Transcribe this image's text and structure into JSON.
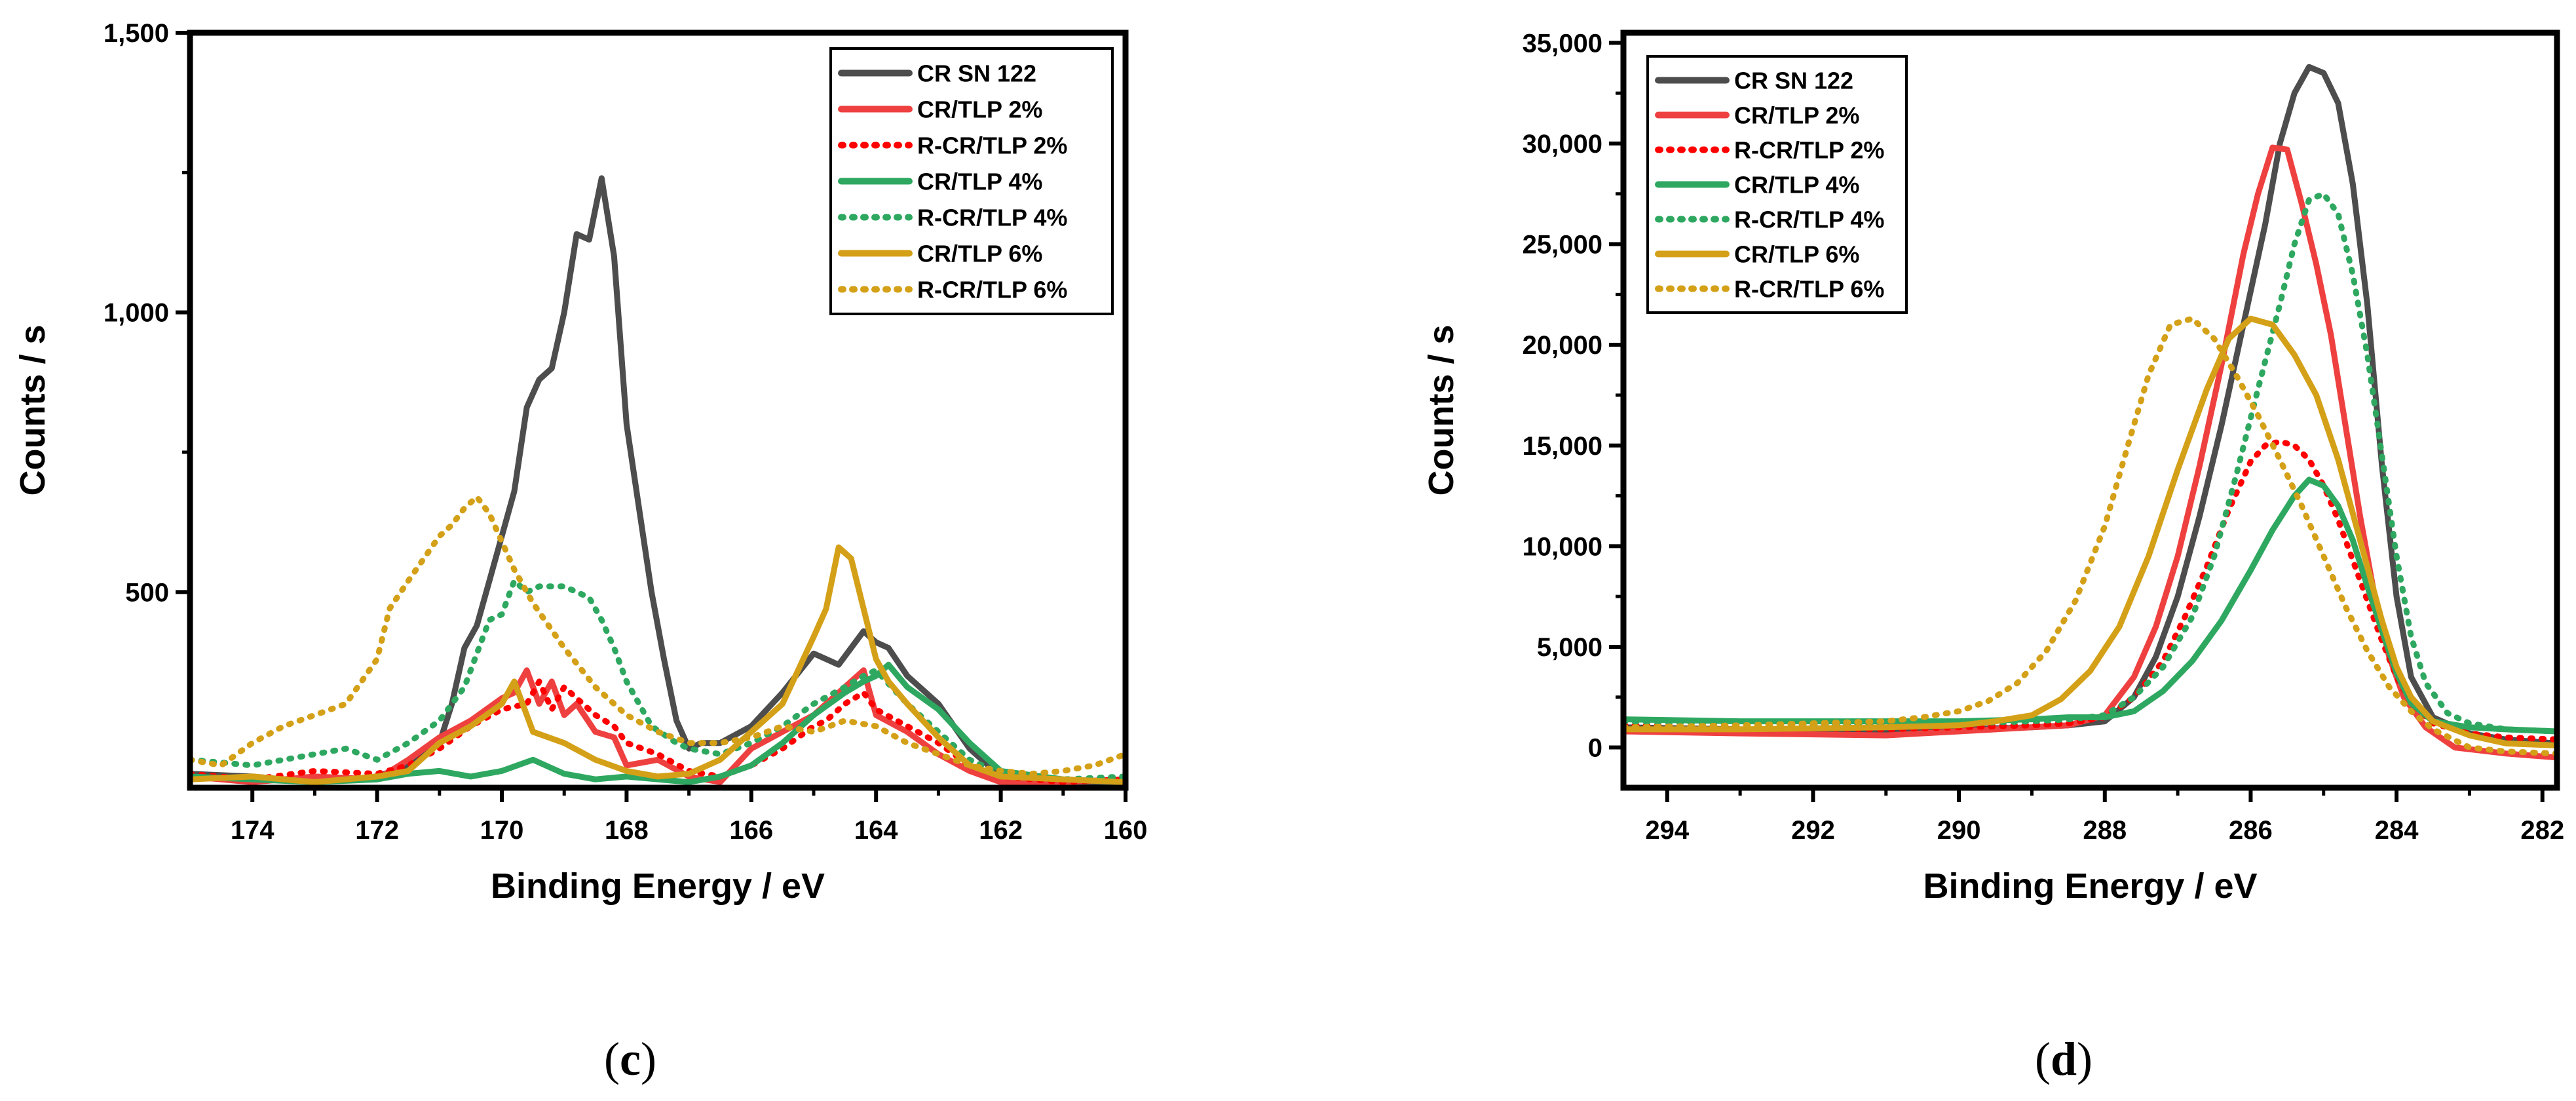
{
  "chart_data": [
    {
      "type": "line",
      "panel_label": "c",
      "xlabel": "Binding Energy / eV",
      "ylabel": "Counts / s",
      "xlim": [
        175,
        160
      ],
      "ylim": [
        150,
        1500
      ],
      "xticks": [
        174,
        172,
        170,
        168,
        166,
        164,
        162,
        160
      ],
      "xtick_labels": [
        "174",
        "172",
        "170",
        "168",
        "166",
        "164",
        "162",
        "160"
      ],
      "yticks": [
        500,
        1000,
        1500
      ],
      "ytick_labels": [
        "500",
        "1,000",
        "1,500"
      ],
      "legend_position": "top-right",
      "series": [
        {
          "name": "CR SN 122",
          "color": "#4d4d4d",
          "dash": "solid",
          "x": [
            175,
            174,
            173,
            172,
            171.5,
            171,
            170.8,
            170.6,
            170.4,
            170.2,
            170,
            169.8,
            169.6,
            169.4,
            169.2,
            169,
            168.8,
            168.6,
            168.4,
            168.2,
            168,
            167.8,
            167.6,
            167.4,
            167.2,
            167,
            166.8,
            166.5,
            166,
            165.5,
            165,
            164.6,
            164.2,
            164,
            163.8,
            163.5,
            163,
            162.5,
            162,
            161.5,
            161,
            160
          ],
          "y": [
            175,
            170,
            160,
            170,
            190,
            230,
            300,
            400,
            440,
            520,
            600,
            680,
            830,
            880,
            900,
            1000,
            1140,
            1130,
            1240,
            1100,
            800,
            650,
            500,
            380,
            270,
            220,
            230,
            230,
            260,
            320,
            390,
            370,
            430,
            410,
            400,
            350,
            300,
            220,
            170,
            165,
            160,
            160
          ]
        },
        {
          "name": "CR/TLP 2%",
          "color": "#ef4040",
          "dash": "solid",
          "x": [
            175,
            174,
            173,
            172,
            171.5,
            171,
            170.5,
            170,
            169.8,
            169.6,
            169.4,
            169.2,
            169,
            168.8,
            168.5,
            168.2,
            168,
            167.5,
            167,
            166.5,
            166,
            165.5,
            165,
            164.8,
            164.5,
            164.2,
            164,
            163.5,
            163,
            162.5,
            162,
            161,
            160
          ],
          "y": [
            170,
            160,
            170,
            165,
            200,
            240,
            270,
            310,
            320,
            360,
            300,
            340,
            280,
            300,
            250,
            240,
            190,
            200,
            170,
            160,
            220,
            250,
            280,
            300,
            330,
            360,
            280,
            250,
            210,
            180,
            160,
            160,
            165
          ]
        },
        {
          "name": "R-CR/TLP 2%",
          "color": "#ff0000",
          "dash": "dot",
          "x": [
            175,
            174,
            173,
            172,
            171.5,
            171,
            170.5,
            170,
            169.6,
            169.4,
            169.2,
            169,
            168.8,
            168.5,
            168.2,
            168,
            167.5,
            167,
            166.5,
            166,
            165.5,
            165,
            164.8,
            164.5,
            164.2,
            164,
            163.5,
            163,
            162.5,
            162,
            161,
            160
          ],
          "y": [
            175,
            165,
            180,
            175,
            190,
            220,
            260,
            290,
            300,
            340,
            290,
            330,
            310,
            280,
            260,
            230,
            210,
            180,
            170,
            190,
            220,
            260,
            270,
            300,
            320,
            290,
            260,
            230,
            190,
            170,
            160,
            165
          ]
        },
        {
          "name": "CR/TLP 4%",
          "color": "#2ea860",
          "dash": "solid",
          "x": [
            175,
            174,
            173,
            172,
            171.5,
            171,
            170.5,
            170,
            169.5,
            169,
            168.5,
            168,
            167.5,
            167,
            166.5,
            166,
            165.5,
            165,
            164.5,
            164.2,
            164,
            163.8,
            163.5,
            163,
            162.5,
            162,
            161,
            160
          ],
          "y": [
            170,
            165,
            160,
            165,
            175,
            180,
            170,
            180,
            200,
            175,
            165,
            170,
            165,
            160,
            170,
            190,
            230,
            280,
            320,
            340,
            350,
            370,
            330,
            290,
            230,
            180,
            165,
            160
          ]
        },
        {
          "name": "R-CR/TLP 4%",
          "color": "#2ea860",
          "dash": "dot",
          "x": [
            175,
            174,
            173,
            172.5,
            172,
            171.5,
            171,
            170.6,
            170.4,
            170.2,
            170,
            169.8,
            169.6,
            169.4,
            169,
            168.6,
            168.4,
            168.2,
            168,
            167.6,
            167.2,
            167,
            166.5,
            166,
            165.5,
            165,
            164.5,
            164.2,
            164,
            163.5,
            163,
            162.5,
            162,
            161,
            160
          ],
          "y": [
            200,
            190,
            210,
            220,
            200,
            230,
            270,
            330,
            390,
            450,
            460,
            520,
            500,
            510,
            510,
            490,
            450,
            400,
            340,
            260,
            230,
            220,
            210,
            230,
            260,
            300,
            330,
            350,
            360,
            300,
            250,
            200,
            175,
            165,
            170
          ]
        },
        {
          "name": "CR/TLP 6%",
          "color": "#d4a017",
          "dash": "solid",
          "x": [
            175,
            174,
            173,
            172,
            171.5,
            171,
            170.5,
            170,
            169.8,
            169.5,
            169,
            168.5,
            168,
            167.5,
            167,
            166.5,
            166,
            165.5,
            165,
            164.8,
            164.6,
            164.4,
            164.2,
            164,
            163.8,
            163.5,
            163,
            162.5,
            162,
            161,
            160
          ],
          "y": [
            165,
            170,
            160,
            170,
            180,
            230,
            260,
            300,
            340,
            250,
            230,
            200,
            180,
            170,
            175,
            200,
            250,
            300,
            420,
            470,
            580,
            560,
            470,
            380,
            340,
            300,
            240,
            190,
            170,
            165,
            160
          ]
        },
        {
          "name": "R-CR/TLP 6%",
          "color": "#d4a017",
          "dash": "dot",
          "x": [
            175,
            174.5,
            174,
            173.5,
            173,
            172.5,
            172,
            171.8,
            171.5,
            171,
            170.8,
            170.6,
            170.4,
            170.2,
            170,
            169.8,
            169.5,
            169,
            168.5,
            168,
            167.5,
            167,
            166.5,
            166,
            165.5,
            165,
            164.5,
            164,
            163.5,
            163,
            162.5,
            162,
            161.5,
            161,
            160.5,
            160
          ],
          "y": [
            200,
            190,
            230,
            260,
            280,
            300,
            380,
            470,
            520,
            600,
            620,
            650,
            670,
            640,
            590,
            540,
            480,
            400,
            330,
            280,
            250,
            230,
            230,
            240,
            260,
            250,
            270,
            260,
            230,
            210,
            190,
            180,
            175,
            180,
            190,
            210
          ]
        }
      ]
    },
    {
      "type": "line",
      "panel_label": "d",
      "xlabel": "Binding Energy / eV",
      "ylabel": "Counts / s",
      "xlim": [
        294.6,
        281.8
      ],
      "ylim": [
        -2000,
        35500
      ],
      "xticks": [
        294,
        292,
        290,
        288,
        286,
        284,
        282
      ],
      "xtick_labels": [
        "294",
        "292",
        "290",
        "288",
        "286",
        "284",
        "282"
      ],
      "yticks": [
        0,
        5000,
        10000,
        15000,
        20000,
        25000,
        30000,
        35000
      ],
      "ytick_labels": [
        "0",
        "5,000",
        "10,000",
        "15,000",
        "20,000",
        "25,000",
        "30,000",
        "35,000"
      ],
      "legend_position": "top-left",
      "series": [
        {
          "name": "CR SN 122",
          "color": "#4d4d4d",
          "dash": "solid",
          "x": [
            294.6,
            293,
            291,
            290,
            289,
            288.5,
            288,
            287.6,
            287.3,
            287,
            286.7,
            286.4,
            286.1,
            285.8,
            285.6,
            285.4,
            285.2,
            285,
            284.8,
            284.6,
            284.4,
            284.2,
            284,
            283.8,
            283.5,
            283,
            282.5,
            281.8
          ],
          "y": [
            1000,
            900,
            800,
            900,
            1000,
            1100,
            1300,
            2500,
            4500,
            7500,
            11500,
            16000,
            21000,
            26000,
            30000,
            32500,
            33800,
            33500,
            32000,
            28000,
            22000,
            14000,
            7500,
            3500,
            1500,
            700,
            400,
            200
          ]
        },
        {
          "name": "CR/TLP 2%",
          "color": "#ef4040",
          "dash": "solid",
          "x": [
            294.6,
            293,
            291,
            290,
            289,
            288.5,
            288,
            287.6,
            287.3,
            287,
            286.7,
            286.4,
            286.1,
            285.9,
            285.7,
            285.5,
            285.3,
            285.1,
            284.9,
            284.7,
            284.5,
            284.3,
            284.1,
            283.9,
            283.6,
            283.2,
            282.5,
            281.8
          ],
          "y": [
            800,
            700,
            600,
            800,
            1000,
            1100,
            1600,
            3500,
            6000,
            9500,
            14000,
            19000,
            24500,
            27500,
            29800,
            29700,
            27000,
            24000,
            20500,
            16000,
            11500,
            7500,
            4500,
            2500,
            1000,
            0,
            -300,
            -500
          ]
        },
        {
          "name": "R-CR/TLP 2%",
          "color": "#ff0000",
          "dash": "dot",
          "x": [
            294.6,
            293,
            291,
            290,
            289,
            288.5,
            288,
            287.6,
            287.2,
            286.9,
            286.6,
            286.3,
            286,
            285.8,
            285.6,
            285.4,
            285.2,
            285,
            284.8,
            284.6,
            284.4,
            284.2,
            284,
            283.8,
            283.5,
            283,
            282.5,
            281.8
          ],
          "y": [
            1100,
            1000,
            900,
            1000,
            1100,
            1200,
            1500,
            2500,
            4300,
            6500,
            9000,
            11800,
            14200,
            15000,
            15200,
            15000,
            14300,
            13000,
            11300,
            9300,
            7300,
            5300,
            3500,
            2200,
            1200,
            700,
            500,
            400
          ]
        },
        {
          "name": "CR/TLP 4%",
          "color": "#2ea860",
          "dash": "solid",
          "x": [
            294.6,
            293,
            291,
            290,
            289,
            288.5,
            288,
            287.6,
            287.2,
            286.8,
            286.4,
            286,
            285.7,
            285.4,
            285.2,
            285,
            284.8,
            284.6,
            284.4,
            284.2,
            284,
            283.8,
            283.5,
            283,
            282.5,
            281.8
          ],
          "y": [
            1400,
            1300,
            1300,
            1300,
            1400,
            1500,
            1500,
            1800,
            2800,
            4300,
            6300,
            8800,
            10800,
            12500,
            13300,
            13000,
            12000,
            10300,
            8000,
            5800,
            3700,
            2200,
            1300,
            1000,
            900,
            800
          ]
        },
        {
          "name": "R-CR/TLP 4%",
          "color": "#2ea860",
          "dash": "dot",
          "x": [
            294.6,
            293,
            291,
            290,
            289,
            288.5,
            288,
            287.6,
            287.2,
            286.8,
            286.5,
            286.2,
            285.9,
            285.6,
            285.4,
            285.2,
            285,
            284.8,
            284.6,
            284.4,
            284.2,
            284,
            283.8,
            283.6,
            283.3,
            283,
            282.5,
            281.8
          ],
          "y": [
            1300,
            1200,
            1100,
            1200,
            1300,
            1400,
            1600,
            2500,
            4000,
            6500,
            9500,
            13500,
            17800,
            22000,
            25000,
            27200,
            27500,
            26500,
            23500,
            19500,
            14500,
            9500,
            5500,
            3200,
            1700,
            1200,
            900,
            800
          ]
        },
        {
          "name": "CR/TLP 6%",
          "color": "#d4a017",
          "dash": "solid",
          "x": [
            294.6,
            293,
            291,
            290,
            289.5,
            289,
            288.6,
            288.2,
            287.8,
            287.4,
            287,
            286.6,
            286.3,
            286,
            285.7,
            285.4,
            285.1,
            284.8,
            284.5,
            284.2,
            284,
            283.8,
            283.5,
            283,
            282.5,
            281.8
          ],
          "y": [
            900,
            900,
            1000,
            1100,
            1300,
            1600,
            2400,
            3800,
            6000,
            9500,
            13800,
            17800,
            20300,
            21300,
            21000,
            19500,
            17500,
            14300,
            10300,
            6300,
            4000,
            2500,
            1300,
            600,
            200,
            100
          ]
        },
        {
          "name": "R-CR/TLP 6%",
          "color": "#d4a017",
          "dash": "dot",
          "x": [
            294.6,
            293,
            291,
            290.5,
            290,
            289.6,
            289.2,
            288.8,
            288.4,
            288,
            287.7,
            287.4,
            287.1,
            286.8,
            286.5,
            286.2,
            285.9,
            285.6,
            285.3,
            285,
            284.7,
            284.4,
            284.1,
            283.8,
            283.5,
            283,
            282.5,
            281.8
          ],
          "y": [
            1000,
            1100,
            1300,
            1500,
            1800,
            2300,
            3200,
            4800,
            7300,
            11000,
            14800,
            18500,
            21000,
            21300,
            20300,
            18500,
            16500,
            14300,
            12000,
            9500,
            7000,
            4800,
            3000,
            1800,
            900,
            0,
            -200,
            -300
          ]
        }
      ]
    }
  ]
}
